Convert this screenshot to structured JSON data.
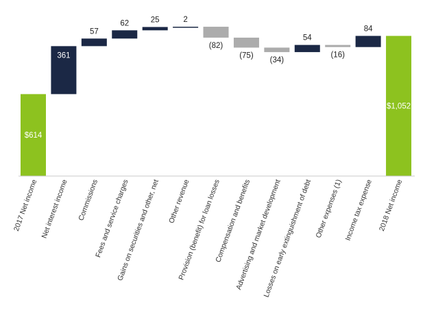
{
  "chart_data": {
    "type": "waterfall",
    "title": "",
    "xlabel": "",
    "ylabel": "",
    "ylim": [
      0,
      1200
    ],
    "grid": false,
    "categories": [
      "2017 Net income",
      "Net interest income",
      "Commissions",
      "Fees and service charges",
      "Gains on securities and other, net",
      "Other revenue",
      "Provision (benefit) for loan losses",
      "Compensation and benefits",
      "Advertising and market development",
      "Losses on early extinguishment of debt",
      "Other expenses (1)",
      "Income tax expense",
      "2018 Net income"
    ],
    "values": [
      614,
      361,
      57,
      62,
      25,
      2,
      -82,
      -75,
      -34,
      54,
      -16,
      84,
      1052
    ],
    "kinds": [
      "total",
      "increase",
      "increase",
      "increase",
      "increase",
      "increase",
      "decrease",
      "decrease",
      "decrease",
      "increase",
      "decrease",
      "increase",
      "total"
    ],
    "data_labels": [
      "$614",
      "361",
      "57",
      "62",
      "25",
      "2",
      "(82)",
      "(75)",
      "(34)",
      "54",
      "(16)",
      "84",
      "$1,052"
    ],
    "colors": {
      "total": "#8dc21f",
      "increase": "#1b2845",
      "decrease": "#acacac",
      "axis": "#c8c8c8"
    }
  }
}
